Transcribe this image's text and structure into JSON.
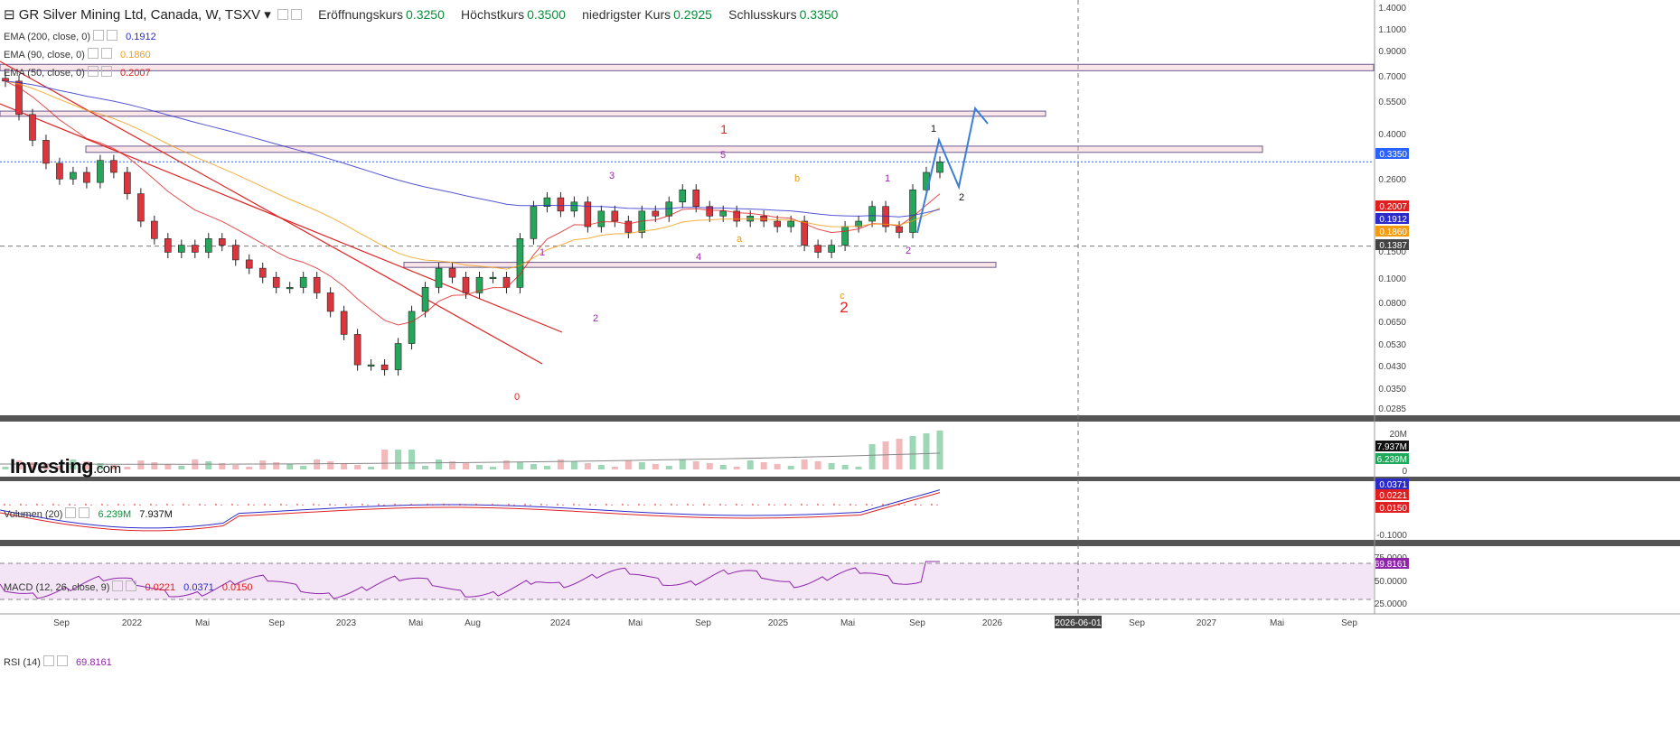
{
  "header": {
    "title": "GR Silver Mining Ltd, Canada, W, TSXV",
    "open_label": "Eröffnungskurs",
    "open": "0.3250",
    "high_label": "Höchstkurs",
    "high": "0.3500",
    "low_label": "niedrigster Kurs",
    "low": "0.2925",
    "close_label": "Schlusskurs",
    "close": "0.3350"
  },
  "indicators": {
    "ema200": {
      "label": "EMA (200, close, 0)",
      "value": "0.1912",
      "color": "#2b2bcc"
    },
    "ema90": {
      "label": "EMA (90, close, 0)",
      "value": "0.1860",
      "color": "#f39c12"
    },
    "ema50": {
      "label": "EMA (50, close, 0)",
      "value": "0.2007",
      "color": "#e02020"
    },
    "volume": {
      "label": "Volumen (20)",
      "value1": "6.239M",
      "value2": "7.937M"
    },
    "macd": {
      "label": "MACD (12, 26, close, 9)",
      "value1": "0.0221",
      "value2": "0.0371",
      "value3": "0.0150"
    },
    "rsi": {
      "label": "RSI (14)",
      "value": "69.8161"
    }
  },
  "logo": {
    "brand": "Investing",
    "suffix": ".com"
  },
  "chart_data": {
    "type": "candlestick",
    "price_axis": {
      "scale": "log",
      "ticks": [
        "1.4000",
        "1.1000",
        "0.9000",
        "0.7000",
        "0.5500",
        "0.4000",
        "0.2600",
        "0.1500",
        "0.1000",
        "0.0800",
        "0.0650",
        "0.0530",
        "0.0430",
        "0.0350",
        "0.0285"
      ],
      "markers": [
        {
          "label": "0.3350",
          "color": "#2962ff"
        },
        {
          "label": "0.2007",
          "color": "#e02020"
        },
        {
          "label": "0.1912",
          "color": "#2b2bcc"
        },
        {
          "label": "0.1860",
          "color": "#f39c12"
        },
        {
          "label": "0.1387",
          "color": "#444444"
        }
      ]
    },
    "x_ticks": [
      "Sep",
      "2022",
      "Mai",
      "Sep",
      "2023",
      "Mai",
      "Aug",
      "2024",
      "Mai",
      "Sep",
      "2025",
      "Mai",
      "Sep",
      "2026",
      "2026-06-01",
      "Sep",
      "2027",
      "Mai",
      "Sep"
    ],
    "close_series": [
      0.78,
      0.55,
      0.42,
      0.33,
      0.28,
      0.3,
      0.27,
      0.34,
      0.3,
      0.24,
      0.18,
      0.15,
      0.13,
      0.14,
      0.13,
      0.15,
      0.14,
      0.12,
      0.11,
      0.1,
      0.09,
      0.09,
      0.1,
      0.085,
      0.07,
      0.055,
      0.04,
      0.04,
      0.038,
      0.05,
      0.07,
      0.09,
      0.11,
      0.1,
      0.085,
      0.1,
      0.1,
      0.09,
      0.15,
      0.21,
      0.23,
      0.2,
      0.22,
      0.17,
      0.2,
      0.18,
      0.16,
      0.2,
      0.19,
      0.22,
      0.25,
      0.21,
      0.19,
      0.2,
      0.18,
      0.19,
      0.18,
      0.17,
      0.18,
      0.14,
      0.13,
      0.14,
      0.17,
      0.18,
      0.21,
      0.17,
      0.16,
      0.25,
      0.3,
      0.335
    ],
    "zones": [
      {
        "lo": 0.87,
        "hi": 0.93
      },
      {
        "lo": 0.54,
        "hi": 0.57
      },
      {
        "lo": 0.37,
        "hi": 0.395
      },
      {
        "lo": 0.111,
        "hi": 0.117
      }
    ],
    "wave_labels": [
      {
        "text": "1",
        "color": "#e02020"
      },
      {
        "text": "5",
        "color": "#9c27b0"
      },
      {
        "text": "3",
        "color": "#9c27b0"
      },
      {
        "text": "b",
        "color": "#f39c12"
      },
      {
        "text": "1",
        "color": "#9c27b0"
      },
      {
        "text": "1",
        "color": "#111111"
      },
      {
        "text": "2",
        "color": "#111111"
      },
      {
        "text": "1",
        "color": "#9c27b0"
      },
      {
        "text": "a",
        "color": "#f39c12"
      },
      {
        "text": "4",
        "color": "#9c27b0"
      },
      {
        "text": "2",
        "color": "#9c27b0"
      },
      {
        "text": "2",
        "color": "#9c27b0"
      },
      {
        "text": "c",
        "color": "#f39c12"
      },
      {
        "text": "2",
        "color": "#e02020"
      },
      {
        "text": "0",
        "color": "#e02020"
      }
    ],
    "volume_axis_ticks": [
      "20M",
      "7.937M",
      "6.239M",
      "0"
    ],
    "macd_axis_ticks": [
      "0.0371",
      "0.0221",
      "0.0150",
      "-0.1000"
    ],
    "rsi_axis_ticks": [
      "75.0000",
      "69.8161",
      "50.0000",
      "25.0000"
    ],
    "rsi_bands": [
      30,
      70
    ]
  }
}
